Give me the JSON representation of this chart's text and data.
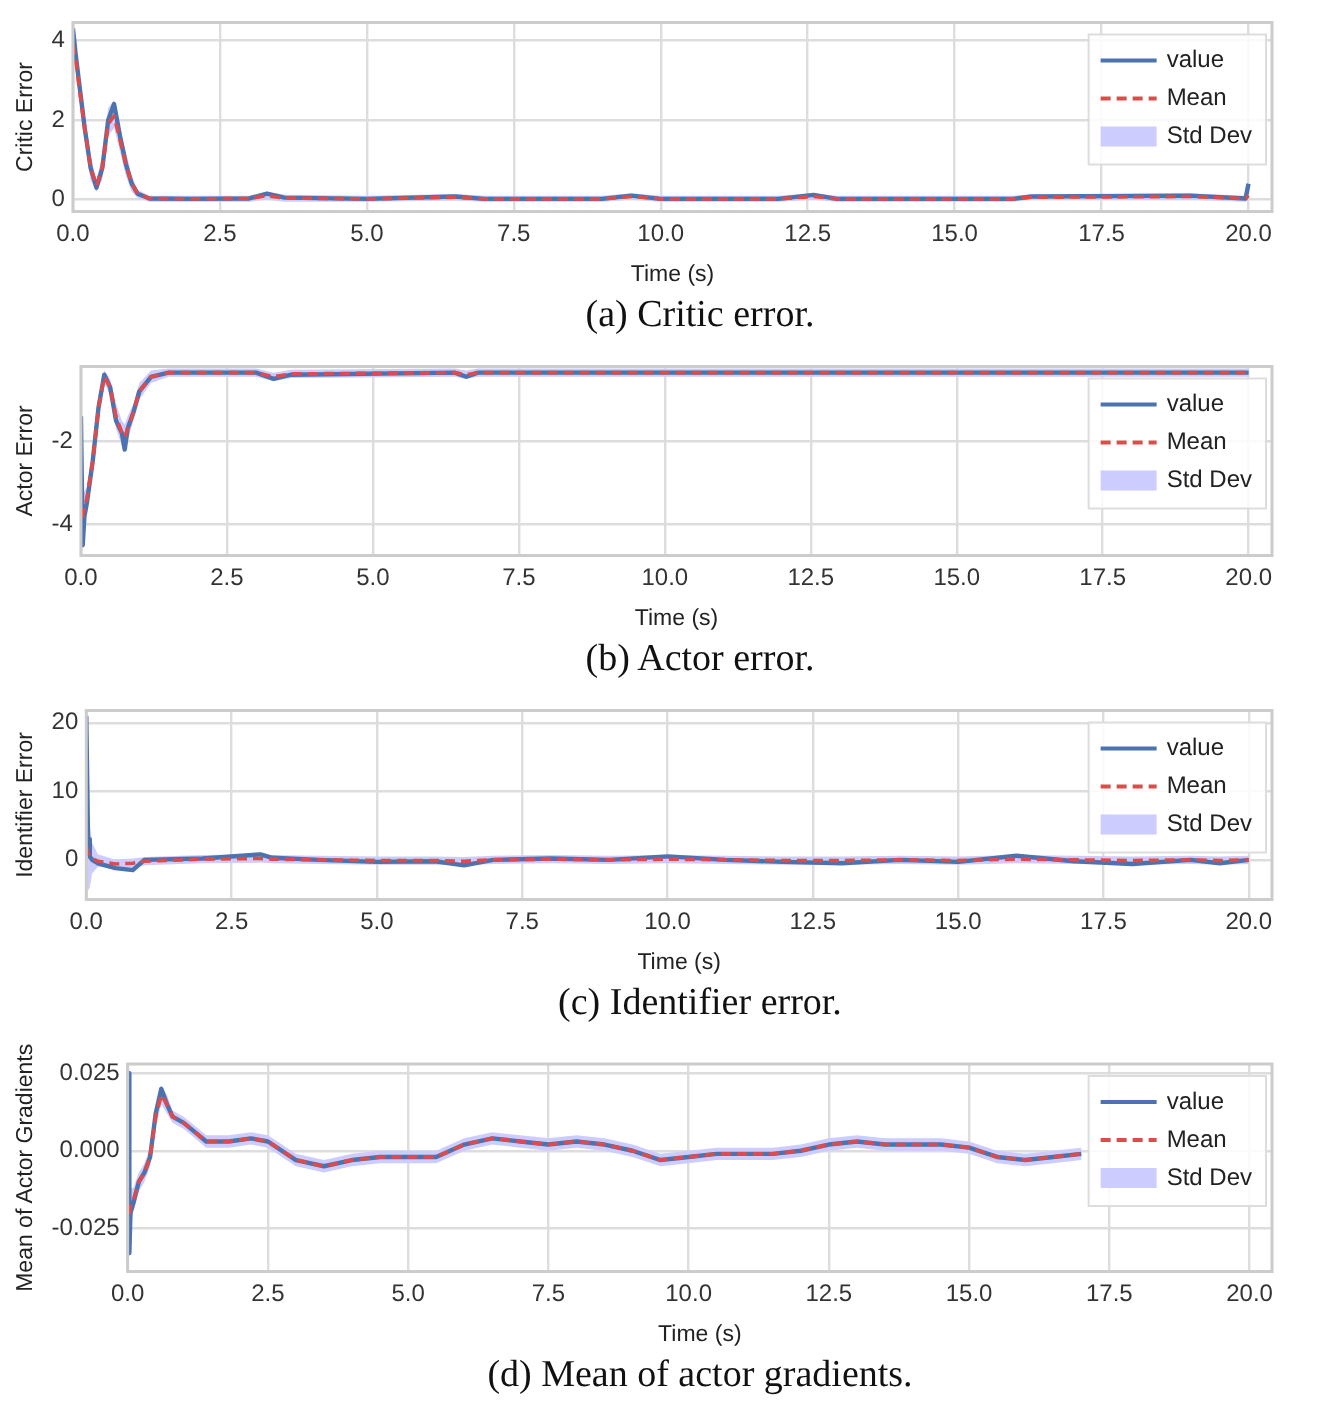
{
  "chart_data": [
    {
      "type": "line",
      "xlabel": "Time (s)",
      "ylabel": "Critic Error",
      "annotations": [
        "(a) Critic error."
      ],
      "grid": true,
      "legend": "top right",
      "xlim": [
        0,
        20.4
      ],
      "xticks": [
        {
          "value": 0,
          "label": "0.0"
        },
        {
          "value": 2.5,
          "label": "2.5"
        },
        {
          "value": 5,
          "label": "5.0"
        },
        {
          "value": 7.5,
          "label": "7.5"
        },
        {
          "value": 10,
          "label": "10.0"
        },
        {
          "value": 12.5,
          "label": "12.5"
        },
        {
          "value": 15,
          "label": "15.0"
        },
        {
          "value": 17.5,
          "label": "17.5"
        },
        {
          "value": 20,
          "label": "20.0"
        }
      ],
      "ylim": [
        -0.3,
        4.45
      ],
      "yticks": [
        0,
        2,
        4
      ],
      "x": [
        0,
        0.05,
        0.1,
        0.2,
        0.3,
        0.4,
        0.5,
        0.6,
        0.7,
        0.8,
        0.9,
        1.0,
        1.1,
        1.3,
        2,
        3,
        3.3,
        3.6,
        5,
        6.5,
        7,
        9,
        9.5,
        10,
        12,
        12.6,
        13,
        16,
        16.3,
        19,
        19.95,
        20
      ],
      "series": [
        {
          "name": "value",
          "type": "line",
          "color": "#4c72b0",
          "values": [
            4.3,
            3.6,
            3.0,
            1.8,
            0.8,
            0.3,
            0.8,
            2.0,
            2.4,
            1.6,
            0.9,
            0.4,
            0.15,
            0.03,
            0.02,
            0.03,
            0.15,
            0.05,
            0.02,
            0.08,
            0.02,
            0.02,
            0.1,
            0.02,
            0.02,
            0.12,
            0.02,
            0.02,
            0.08,
            0.1,
            0.03,
            0.4
          ]
        },
        {
          "name": "Mean",
          "type": "line",
          "line_style": "dashed",
          "color": "#dd4c4c",
          "values": [
            3.9,
            3.5,
            2.9,
            1.8,
            0.8,
            0.35,
            0.8,
            1.9,
            2.1,
            1.5,
            0.9,
            0.4,
            0.15,
            0.03,
            0.02,
            0.03,
            0.1,
            0.04,
            0.02,
            0.06,
            0.02,
            0.02,
            0.08,
            0.02,
            0.02,
            0.08,
            0.02,
            0.02,
            0.06,
            0.08,
            0.03,
            0.1
          ],
          "lower": [
            3.6,
            3.2,
            2.6,
            1.5,
            0.5,
            0.2,
            0.5,
            1.6,
            1.8,
            1.2,
            0.6,
            0.2,
            0.05,
            -0.05,
            -0.05,
            -0.05,
            0.0,
            -0.05,
            -0.05,
            -0.02,
            -0.05,
            -0.05,
            0.0,
            -0.05,
            -0.05,
            0.0,
            -0.05,
            -0.05,
            0.0,
            0.0,
            -0.05,
            0.0
          ],
          "upper": [
            4.4,
            3.9,
            3.3,
            2.1,
            1.1,
            0.5,
            1.1,
            2.3,
            2.5,
            1.8,
            1.2,
            0.6,
            0.25,
            0.1,
            0.1,
            0.1,
            0.2,
            0.12,
            0.1,
            0.14,
            0.1,
            0.1,
            0.16,
            0.1,
            0.1,
            0.16,
            0.1,
            0.1,
            0.12,
            0.16,
            0.1,
            0.2
          ]
        },
        {
          "name": "Std Dev",
          "type": "area",
          "color": "#ccccff",
          "values": [
            null,
            null,
            null,
            null,
            null,
            null,
            null,
            null,
            null,
            null,
            null,
            null,
            null,
            null,
            null,
            null,
            null,
            null,
            null,
            null,
            null,
            null,
            null,
            null,
            null,
            null,
            null,
            null,
            null,
            null,
            null,
            null
          ]
        }
      ]
    },
    {
      "type": "line",
      "xlabel": "Time (s)",
      "ylabel": "Actor Error",
      "annotations": [
        "(b) Actor error."
      ],
      "grid": true,
      "legend": "top right",
      "xlim": [
        0,
        20.4
      ],
      "xticks": [
        {
          "value": 0,
          "label": "0.0"
        },
        {
          "value": 2.5,
          "label": "2.5"
        },
        {
          "value": 5,
          "label": "5.0"
        },
        {
          "value": 7.5,
          "label": "7.5"
        },
        {
          "value": 10,
          "label": "10.0"
        },
        {
          "value": 12.5,
          "label": "12.5"
        },
        {
          "value": 15,
          "label": "15.0"
        },
        {
          "value": 17.5,
          "label": "17.5"
        },
        {
          "value": 20,
          "label": "20.0"
        }
      ],
      "ylim": [
        -4.75,
        -0.2
      ],
      "yticks": [
        -4,
        -2
      ],
      "x": [
        0,
        0.03,
        0.06,
        0.1,
        0.2,
        0.3,
        0.4,
        0.5,
        0.6,
        0.7,
        0.75,
        0.8,
        0.9,
        1.0,
        1.2,
        1.5,
        3,
        3.3,
        3.6,
        6.4,
        6.6,
        6.8,
        10,
        15,
        19,
        20
      ],
      "series": [
        {
          "name": "value",
          "type": "line",
          "color": "#4c72b0",
          "values": [
            -1.4,
            -4.5,
            -3.8,
            -3.5,
            -2.5,
            -1.2,
            -0.4,
            -0.7,
            -1.5,
            -1.8,
            -2.2,
            -1.7,
            -1.3,
            -0.8,
            -0.45,
            -0.35,
            -0.35,
            -0.5,
            -0.4,
            -0.35,
            -0.45,
            -0.35,
            -0.35,
            -0.35,
            -0.35,
            -0.35
          ]
        },
        {
          "name": "Mean",
          "type": "line",
          "line_style": "dashed",
          "color": "#dd4c4c",
          "values": [
            -3.8,
            -3.8,
            -3.6,
            -3.4,
            -2.5,
            -1.2,
            -0.45,
            -0.7,
            -1.4,
            -1.8,
            -1.9,
            -1.7,
            -1.3,
            -0.8,
            -0.45,
            -0.35,
            -0.35,
            -0.45,
            -0.38,
            -0.35,
            -0.4,
            -0.35,
            -0.35,
            -0.35,
            -0.35,
            -0.35
          ],
          "lower": [
            -4.3,
            -4.3,
            -4.0,
            -3.7,
            -2.8,
            -1.5,
            -0.6,
            -0.9,
            -1.7,
            -2.1,
            -2.2,
            -2.0,
            -1.5,
            -1.0,
            -0.6,
            -0.45,
            -0.45,
            -0.55,
            -0.48,
            -0.45,
            -0.5,
            -0.45,
            -0.45,
            -0.45,
            -0.45,
            -0.45
          ],
          "upper": [
            -3.3,
            -3.3,
            -3.2,
            -3.1,
            -2.2,
            -0.9,
            -0.3,
            -0.5,
            -1.1,
            -1.5,
            -1.6,
            -1.4,
            -1.1,
            -0.6,
            -0.3,
            -0.25,
            -0.25,
            -0.35,
            -0.28,
            -0.25,
            -0.3,
            -0.25,
            -0.25,
            -0.25,
            -0.25,
            -0.25
          ]
        },
        {
          "name": "Std Dev",
          "type": "area",
          "color": "#ccccff",
          "values": [
            null,
            null,
            null,
            null,
            null,
            null,
            null,
            null,
            null,
            null,
            null,
            null,
            null,
            null,
            null,
            null,
            null,
            null,
            null,
            null,
            null,
            null,
            null,
            null,
            null,
            null
          ]
        }
      ]
    },
    {
      "type": "line",
      "xlabel": "Time (s)",
      "ylabel": "Identifier Error",
      "annotations": [
        "(c) Identifier error."
      ],
      "grid": true,
      "legend": "top right",
      "xlim": [
        0,
        20.4
      ],
      "xticks": [
        {
          "value": 0,
          "label": "0.0"
        },
        {
          "value": 2.5,
          "label": "2.5"
        },
        {
          "value": 5,
          "label": "5.0"
        },
        {
          "value": 7.5,
          "label": "7.5"
        },
        {
          "value": 10,
          "label": "10.0"
        },
        {
          "value": 12.5,
          "label": "12.5"
        },
        {
          "value": 15,
          "label": "15.0"
        },
        {
          "value": 17.5,
          "label": "17.5"
        },
        {
          "value": 20,
          "label": "20.0"
        }
      ],
      "ylim": [
        -5.8,
        21.8
      ],
      "yticks": [
        0,
        10,
        20
      ],
      "x": [
        0,
        0.03,
        0.06,
        0.1,
        0.2,
        0.5,
        0.8,
        1,
        2,
        3,
        3.2,
        4,
        5,
        6,
        6.5,
        7,
        8,
        9,
        10,
        11,
        12,
        13,
        14,
        15,
        16,
        17,
        18,
        19,
        19.5,
        20
      ],
      "series": [
        {
          "name": "value",
          "type": "line",
          "color": "#4c72b0",
          "values": [
            21,
            3,
            0.5,
            0,
            -0.5,
            -1.2,
            -1.5,
            0,
            0.2,
            0.8,
            0.3,
            0,
            -0.3,
            -0.2,
            -0.8,
            0,
            0.2,
            0,
            0.5,
            0,
            -0.3,
            -0.5,
            0,
            -0.3,
            0.6,
            -0.2,
            -0.6,
            0,
            -0.5,
            0
          ]
        },
        {
          "name": "Mean",
          "type": "line",
          "line_style": "dashed",
          "color": "#dd4c4c",
          "values": [
            2,
            1,
            0.5,
            0.2,
            -0.2,
            -0.6,
            -0.5,
            -0.2,
            0.1,
            0.2,
            0.1,
            0,
            -0.1,
            -0.1,
            -0.2,
            0,
            0.1,
            0,
            0.1,
            0,
            -0.1,
            -0.1,
            0,
            -0.1,
            0.1,
            0,
            -0.1,
            0,
            -0.1,
            0
          ],
          "lower": [
            -4,
            -4.5,
            -4,
            -2,
            -1,
            -1.2,
            -1.3,
            -0.8,
            -0.5,
            -0.4,
            -0.5,
            -0.6,
            -0.7,
            -0.7,
            -0.8,
            -0.6,
            -0.5,
            -0.6,
            -0.5,
            -0.6,
            -0.7,
            -0.7,
            -0.6,
            -0.7,
            -0.5,
            -0.6,
            -0.7,
            -0.6,
            -0.7,
            -0.6
          ],
          "upper": [
            21,
            7,
            5,
            2.5,
            0.8,
            0,
            0.2,
            0.4,
            0.7,
            0.8,
            0.7,
            0.6,
            0.5,
            0.5,
            0.4,
            0.6,
            0.7,
            0.6,
            0.7,
            0.6,
            0.5,
            0.5,
            0.6,
            0.5,
            0.7,
            0.6,
            0.5,
            0.6,
            0.5,
            0.6
          ]
        },
        {
          "name": "Std Dev",
          "type": "area",
          "color": "#ccccff",
          "values": [
            null,
            null,
            null,
            null,
            null,
            null,
            null,
            null,
            null,
            null,
            null,
            null,
            null,
            null,
            null,
            null,
            null,
            null,
            null,
            null,
            null,
            null,
            null,
            null,
            null,
            null,
            null,
            null,
            null,
            null
          ]
        }
      ]
    },
    {
      "type": "line",
      "xlabel": "Time (s)",
      "ylabel": "Mean of Actor Gradients",
      "annotations": [
        "(d) Mean of actor gradients."
      ],
      "grid": true,
      "legend": "top right",
      "xlim": [
        0,
        20.4
      ],
      "xticks": [
        {
          "value": 0,
          "label": "0.0"
        },
        {
          "value": 2.5,
          "label": "2.5"
        },
        {
          "value": 5,
          "label": "5.0"
        },
        {
          "value": 7.5,
          "label": "7.5"
        },
        {
          "value": 10,
          "label": "10.0"
        },
        {
          "value": 12.5,
          "label": "12.5"
        },
        {
          "value": 15,
          "label": "15.0"
        },
        {
          "value": 17.5,
          "label": "17.5"
        },
        {
          "value": 20,
          "label": "20.0"
        }
      ],
      "ylim": [
        -0.039,
        0.028
      ],
      "yticks": [
        {
          "value": -0.025,
          "label": "-0.025"
        },
        {
          "value": 0,
          "label": "0.000"
        },
        {
          "value": 0.025,
          "label": "0.025"
        }
      ],
      "x": [
        0,
        0.02,
        0.03,
        0.05,
        0.1,
        0.2,
        0.3,
        0.4,
        0.5,
        0.6,
        0.7,
        0.8,
        1.0,
        1.2,
        1.4,
        1.8,
        2.2,
        2.5,
        3,
        3.5,
        4,
        4.5,
        5,
        5.5,
        6,
        6.5,
        7,
        7.5,
        8,
        8.5,
        9,
        9.5,
        10,
        10.5,
        11,
        11.5,
        12,
        12.5,
        13,
        13.5,
        14,
        14.5,
        15,
        15.5,
        16,
        16.5,
        17
      ],
      "series": [
        {
          "name": "value",
          "type": "line",
          "color": "#4c72b0",
          "values": [
            -0.03,
            0.025,
            -0.033,
            -0.02,
            -0.017,
            -0.01,
            -0.007,
            -0.002,
            0.012,
            0.02,
            0.015,
            0.011,
            0.009,
            0.006,
            0.003,
            0.003,
            0.004,
            0.003,
            -0.003,
            -0.005,
            -0.003,
            -0.002,
            -0.002,
            -0.002,
            0.002,
            0.004,
            0.003,
            0.002,
            0.003,
            0.002,
            0.0,
            -0.003,
            -0.002,
            -0.001,
            -0.001,
            -0.001,
            0.0,
            0.002,
            0.003,
            0.002,
            0.002,
            0.002,
            0.001,
            -0.002,
            -0.003,
            -0.002,
            -0.001
          ]
        },
        {
          "name": "Mean",
          "type": "line",
          "line_style": "dashed",
          "color": "#dd4c4c",
          "values": [
            -0.02,
            -0.02,
            -0.02,
            -0.018,
            -0.016,
            -0.01,
            -0.007,
            -0.002,
            0.011,
            0.018,
            0.015,
            0.011,
            0.009,
            0.006,
            0.003,
            0.003,
            0.004,
            0.003,
            -0.003,
            -0.005,
            -0.003,
            -0.002,
            -0.002,
            -0.002,
            0.002,
            0.004,
            0.003,
            0.002,
            0.003,
            0.002,
            0.0,
            -0.003,
            -0.002,
            -0.001,
            -0.001,
            -0.001,
            0.0,
            0.002,
            0.003,
            0.002,
            0.002,
            0.002,
            0.001,
            -0.002,
            -0.003,
            -0.002,
            -0.001
          ],
          "lower": [
            -0.034,
            -0.034,
            -0.033,
            -0.024,
            -0.02,
            -0.013,
            -0.01,
            -0.005,
            0.008,
            0.015,
            0.012,
            0.009,
            0.007,
            0.004,
            0.001,
            0.001,
            0.002,
            0.001,
            -0.005,
            -0.007,
            -0.005,
            -0.004,
            -0.004,
            -0.004,
            0.0,
            0.002,
            0.001,
            0.0,
            0.001,
            0.0,
            -0.002,
            -0.005,
            -0.004,
            -0.003,
            -0.003,
            -0.003,
            -0.002,
            0.0,
            0.001,
            0.0,
            0.0,
            0.0,
            -0.001,
            -0.004,
            -0.005,
            -0.004,
            -0.003
          ],
          "upper": [
            -0.006,
            -0.006,
            -0.007,
            -0.012,
            -0.012,
            -0.007,
            -0.004,
            0.001,
            0.014,
            0.021,
            0.018,
            0.013,
            0.011,
            0.008,
            0.005,
            0.005,
            0.006,
            0.005,
            -0.001,
            -0.003,
            -0.001,
            0.0,
            0.0,
            0.0,
            0.004,
            0.006,
            0.005,
            0.004,
            0.005,
            0.004,
            0.002,
            -0.001,
            0.0,
            0.001,
            0.001,
            0.001,
            0.002,
            0.004,
            0.005,
            0.004,
            0.004,
            0.004,
            0.003,
            0.0,
            -0.001,
            0.0,
            0.001
          ]
        },
        {
          "name": "Std Dev",
          "type": "area",
          "color": "#ccccff",
          "values": [
            null,
            null,
            null,
            null,
            null,
            null,
            null,
            null,
            null,
            null,
            null,
            null,
            null,
            null,
            null,
            null,
            null,
            null,
            null,
            null,
            null,
            null,
            null,
            null,
            null,
            null,
            null,
            null,
            null,
            null,
            null,
            null,
            null,
            null,
            null,
            null,
            null,
            null,
            null,
            null,
            null,
            null,
            null,
            null,
            null,
            null,
            null
          ]
        }
      ]
    }
  ]
}
